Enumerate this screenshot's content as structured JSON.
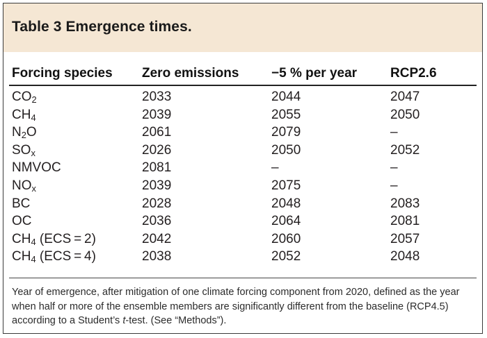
{
  "table": {
    "title": "Table 3 Emergence times.",
    "headers": [
      "Forcing species",
      "Zero emissions",
      "−5 % per year",
      "RCP2.6"
    ],
    "rows": [
      {
        "species": {
          "base": "CO",
          "sub": "2",
          "suffix": ""
        },
        "zero": "2033",
        "minus5": "2044",
        "rcp26": "2047"
      },
      {
        "species": {
          "base": "CH",
          "sub": "4",
          "suffix": ""
        },
        "zero": "2039",
        "minus5": "2055",
        "rcp26": "2050"
      },
      {
        "species": {
          "base": "N",
          "sub": "2",
          "suffix": "O"
        },
        "zero": "2061",
        "minus5": "2079",
        "rcp26": "–"
      },
      {
        "species": {
          "base": "SO",
          "sub": "x",
          "suffix": ""
        },
        "zero": "2026",
        "minus5": "2050",
        "rcp26": "2052"
      },
      {
        "species": {
          "base": "NMVOC",
          "sub": "",
          "suffix": ""
        },
        "zero": "2081",
        "minus5": "–",
        "rcp26": "–"
      },
      {
        "species": {
          "base": "NO",
          "sub": "x",
          "suffix": ""
        },
        "zero": "2039",
        "minus5": "2075",
        "rcp26": "–"
      },
      {
        "species": {
          "base": "BC",
          "sub": "",
          "suffix": ""
        },
        "zero": "2028",
        "minus5": "2048",
        "rcp26": "2083"
      },
      {
        "species": {
          "base": "OC",
          "sub": "",
          "suffix": ""
        },
        "zero": "2036",
        "minus5": "2064",
        "rcp26": "2081"
      },
      {
        "species": {
          "base": "CH",
          "sub": "4",
          "suffix": " (ECS = 2)"
        },
        "zero": "2042",
        "minus5": "2060",
        "rcp26": "2057"
      },
      {
        "species": {
          "base": "CH",
          "sub": "4",
          "suffix": " (ECS = 4)"
        },
        "zero": "2038",
        "minus5": "2052",
        "rcp26": "2048"
      }
    ],
    "footnote": {
      "before": "Year of emergence, after mitigation of one climate forcing component from 2020, defined as the year when half or more of the ensemble members are significantly different from the baseline (RCP4.5) according to a Student’s ",
      "italic": "t",
      "after": "-test. (See “Methods”)."
    }
  }
}
